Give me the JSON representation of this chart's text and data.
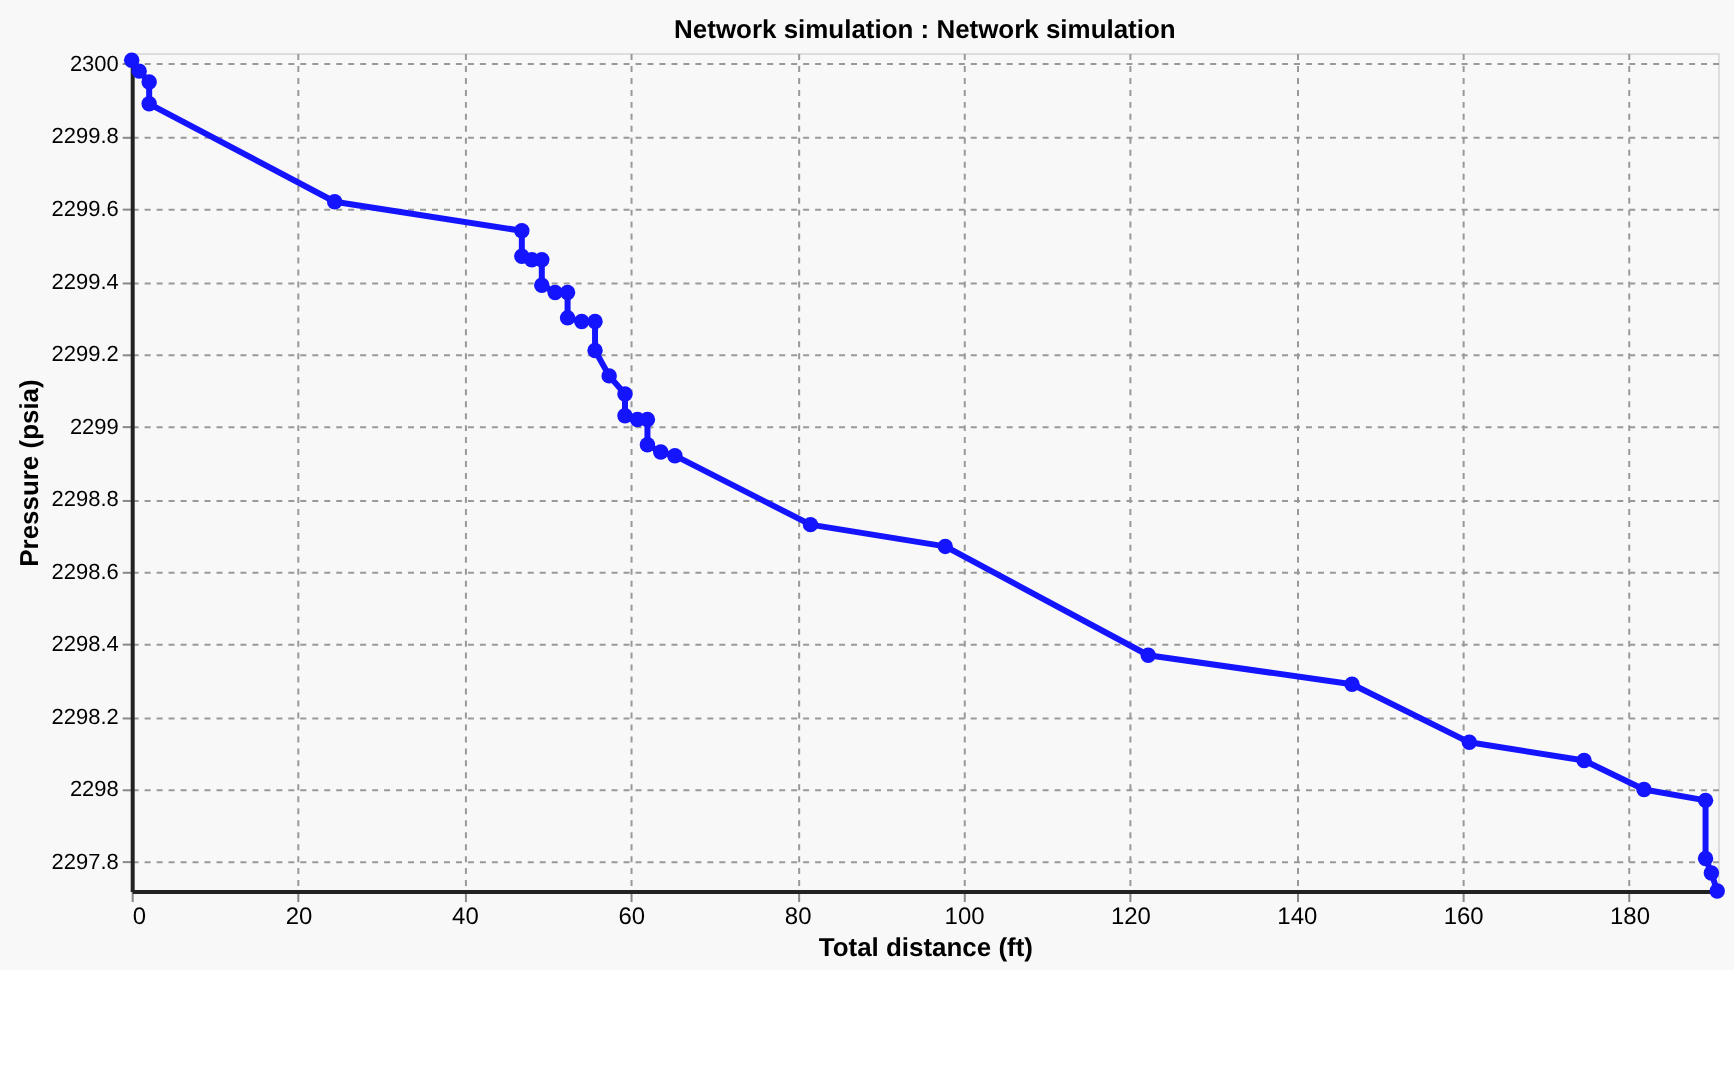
{
  "chart_data": {
    "type": "line",
    "title": "Network simulation : Network simulation",
    "xlabel": "Total distance (ft)",
    "ylabel": "Pressure (psia)",
    "x": [
      0,
      0.9,
      2.1,
      2.1,
      24.4,
      46.9,
      46.9,
      48.1,
      49.3,
      49.3,
      50.9,
      52.4,
      52.4,
      54.1,
      55.7,
      55.7,
      57.4,
      59.3,
      59.3,
      60.8,
      62.0,
      62.0,
      63.6,
      65.3,
      81.6,
      97.8,
      122.2,
      146.7,
      160.8,
      174.6,
      181.8,
      189.2,
      189.2,
      189.9,
      190.6
    ],
    "series": [
      {
        "color": "#1414ff",
        "values": [
          2300.01,
          2299.98,
          2299.95,
          2299.89,
          2299.62,
          2299.54,
          2299.47,
          2299.46,
          2299.46,
          2299.39,
          2299.37,
          2299.37,
          2299.3,
          2299.29,
          2299.29,
          2299.21,
          2299.14,
          2299.09,
          2299.03,
          2299.02,
          2299.02,
          2298.95,
          2298.93,
          2298.92,
          2298.73,
          2298.67,
          2298.37,
          2298.29,
          2298.13,
          2298.08,
          2298.0,
          2297.97,
          2297.81,
          2297.77,
          2297.72
        ]
      }
    ],
    "xlim": [
      0,
      190.7
    ],
    "ylim": [
      2297.72,
      2300.03
    ],
    "xticks": [
      0,
      20,
      40,
      60,
      80,
      100,
      120,
      140,
      160,
      180
    ],
    "yticks": [
      2297.8,
      2298,
      2298.2,
      2298.4,
      2298.6,
      2298.8,
      2299,
      2299.2,
      2299.4,
      2299.6,
      2299.8,
      2300
    ],
    "grid": true,
    "marker": "circle",
    "line_style": "solid"
  }
}
